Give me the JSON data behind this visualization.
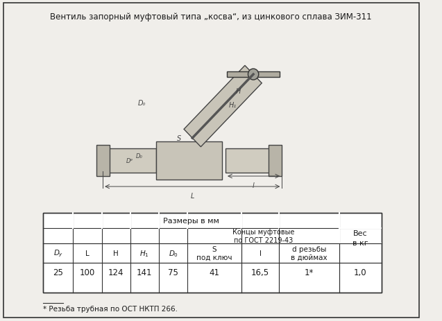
{
  "title": "Вентиль запорный муфтовый типа „косва“, из цинкового сплава ЗИМ-311",
  "bg_color": "#f0eeea",
  "border_color": "#333333",
  "table": {
    "header_row1": [
      "Размеры в мм",
      "",
      "",
      "",
      "",
      "",
      "",
      "",
      "Вес\nв кг"
    ],
    "header_row2_main": [
      "",
      "",
      "",
      "",
      "",
      "Концы муфтовые\nпо ГОСТ 2219-43",
      "",
      "",
      ""
    ],
    "header_row3": [
      "D_y",
      "L",
      "H",
      "H_1",
      "D_0",
      "S\nпод ключ",
      "l",
      "d резьбы\nв дюймах",
      ""
    ],
    "data_row": [
      "25",
      "100",
      "124",
      "141",
      "75",
      "41",
      "16,5",
      "1*",
      "1,0"
    ],
    "footnote": "* Резьба трубная по ОСТ НКТП 266."
  }
}
